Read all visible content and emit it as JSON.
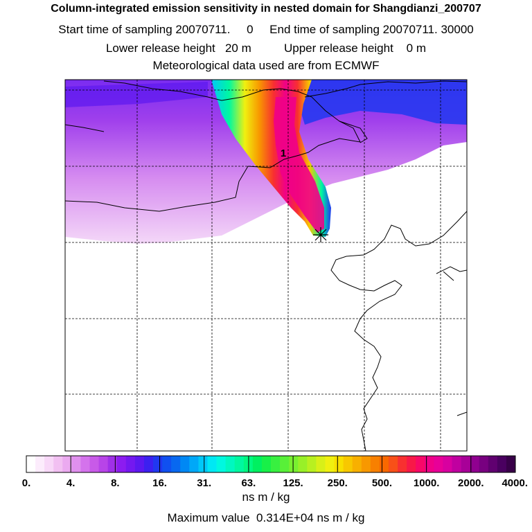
{
  "header": {
    "title": "Column-integrated emission sensitivity in nested domain for Shangdianzi_200707",
    "line1": "Start time of sampling 20070711.     0     End time of sampling 20070711. 30000",
    "line2": "Lower release height   20 m          Upper release height    0 m",
    "line3": "Meteorological data used are from ECMWF"
  },
  "map": {
    "release_label": "1",
    "station_marker_icon": "asterisk-star-icon"
  },
  "colorbar": {
    "tick_labels": [
      "0.",
      "4.",
      "8.",
      "16.",
      "31.",
      "63.",
      "125.",
      "250.",
      "500.",
      "1000.",
      "2000.",
      "4000."
    ],
    "colors": [
      "#ffffff",
      "#fcecfc",
      "#f8d8f8",
      "#f2c0f2",
      "#ebaaf0",
      "#e090ee",
      "#d473ec",
      "#c85ae8",
      "#b844e8",
      "#a030e8",
      "#8c1cf0",
      "#7418f0",
      "#5c18f0",
      "#3c20f0",
      "#2038f0",
      "#1050f0",
      "#0868f0",
      "#0088f4",
      "#00a8f8",
      "#00c8f8",
      "#00e8f4",
      "#00f8e0",
      "#00f8c0",
      "#00f8a0",
      "#00f880",
      "#00f060",
      "#18f048",
      "#38f040",
      "#58f038",
      "#78f030",
      "#98f028",
      "#b8f020",
      "#d8f018",
      "#f0f010",
      "#f8e000",
      "#f8c800",
      "#f8b000",
      "#f89800",
      "#f88000",
      "#f86800",
      "#f85018",
      "#f83030",
      "#f81848",
      "#f80868",
      "#f00088",
      "#e80098",
      "#d800a0",
      "#c000a0",
      "#a80098",
      "#900090",
      "#780080",
      "#600070",
      "#4a0060",
      "#380048"
    ]
  },
  "footer": {
    "unit": "ns m / kg",
    "max_value": "Maximum value  0.314E+04 ns m / kg"
  }
}
